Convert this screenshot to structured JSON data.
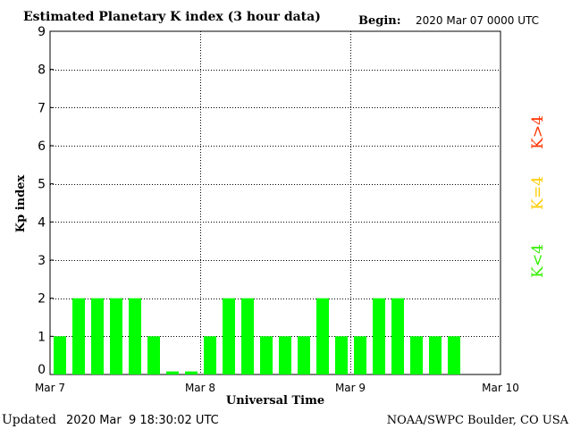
{
  "header": {
    "title": "Estimated Planetary K index (3 hour data)",
    "begin_label": "Begin:",
    "begin_value": "2020 Mar 07 0000 UTC"
  },
  "footer": {
    "updated_label": "Updated",
    "updated_value": "2020 Mar  9 18:30:02 UTC",
    "credit": "NOAA/SWPC Boulder, CO USA"
  },
  "legend": [
    {
      "label": "K>4",
      "color": "#ff3300"
    },
    {
      "label": "K=4",
      "color": "#ffcc00"
    },
    {
      "label": "K<4",
      "color": "#33ee00"
    }
  ],
  "chart_data": {
    "type": "bar",
    "title": "Estimated Planetary K index (3 hour data)",
    "xlabel": "Universal Time",
    "ylabel": "Kp index",
    "ylim": [
      0,
      9
    ],
    "yticks": [
      0,
      1,
      2,
      3,
      4,
      5,
      6,
      7,
      8,
      9
    ],
    "xticks": [
      "Mar 7",
      "Mar 8",
      "Mar 9",
      "Mar 10"
    ],
    "grid": "dotted",
    "bar_color": "#00ff00",
    "interval_hours": 3,
    "values": [
      1,
      2,
      2,
      2,
      2,
      1,
      0,
      0,
      1,
      2,
      2,
      1,
      1,
      1,
      2,
      1,
      1,
      2,
      2,
      1,
      1,
      1
    ]
  }
}
